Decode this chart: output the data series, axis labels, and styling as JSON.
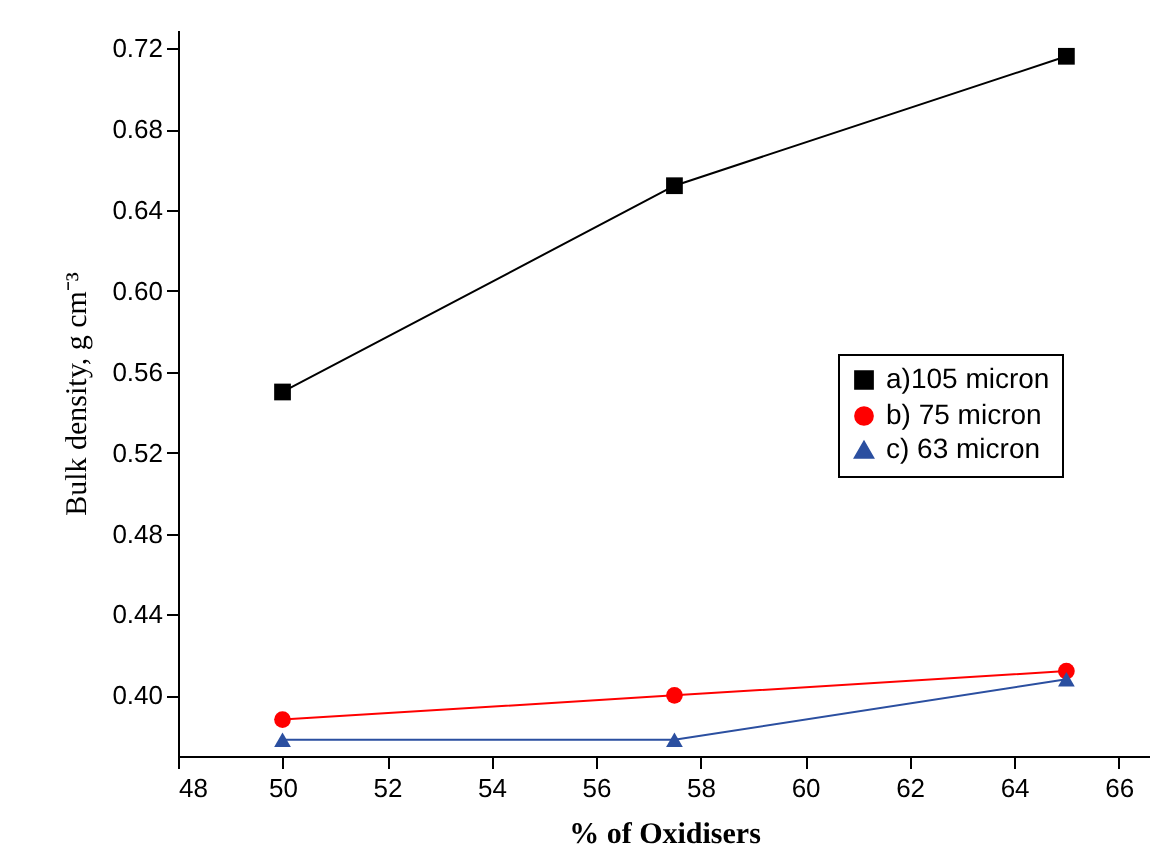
{
  "chart_data": {
    "type": "line",
    "xlabel": "% of Oxidisers",
    "ylabel": "Bulk density, g cm⁻³",
    "x": [
      50,
      57.5,
      65
    ],
    "series": [
      {
        "name": "a)105 micron",
        "color": "#000000",
        "marker": "square",
        "values": [
          0.55,
          0.652,
          0.716
        ]
      },
      {
        "name": "b)  75 micron",
        "color": "#ff0000",
        "marker": "circle",
        "values": [
          0.388,
          0.4,
          0.412
        ]
      },
      {
        "name": "c)  63 micron",
        "color": "#2b4fa0",
        "marker": "triangle",
        "values": [
          0.378,
          0.378,
          0.408
        ]
      }
    ],
    "xlim": [
      48,
      66.6
    ],
    "xticks": [
      48,
      50,
      52,
      54,
      56,
      58,
      60,
      62,
      64,
      66
    ],
    "ylim": [
      0.37,
      0.729
    ],
    "yticks": [
      {
        "value": 0.4,
        "label": "0.40"
      },
      {
        "value": 0.44,
        "label": "0.44"
      },
      {
        "value": 0.48,
        "label": "0.48"
      },
      {
        "value": 0.52,
        "label": "0.52"
      },
      {
        "value": 0.56,
        "label": "0.56"
      },
      {
        "value": 0.6,
        "label": "0.60"
      },
      {
        "value": 0.64,
        "label": "0.64"
      },
      {
        "value": 0.68,
        "label": "0.68"
      },
      {
        "value": 0.72,
        "label": "0.72"
      }
    ],
    "grid": false,
    "legend": "right",
    "line_style": "solid"
  }
}
